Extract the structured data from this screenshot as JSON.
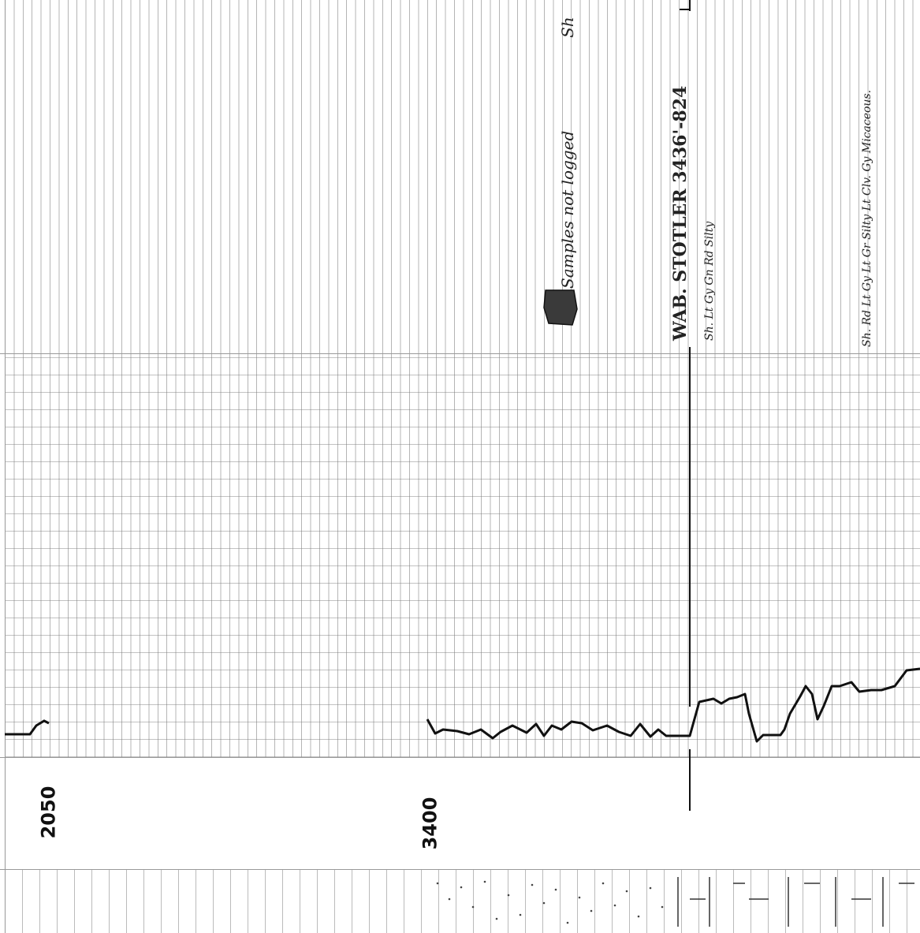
{
  "depth_marks": [
    {
      "label": "2050"
    },
    {
      "label": "3400"
    }
  ],
  "annotations": {
    "samples_note": "Samples not logged",
    "samples_note_tail": "Sh",
    "formation_top": "WAB. STOTLER 3436'-824",
    "lithology_1": "Sh. Lt Gy Gn Rd Silty",
    "lithology_2": "Sh. Rd Lt Gy Lt Gr Silty Lt Clv. Gy Micaceous."
  },
  "colors": {
    "ink": "#111111",
    "grid": "#8a8a8a",
    "paper": "#ffffff"
  }
}
